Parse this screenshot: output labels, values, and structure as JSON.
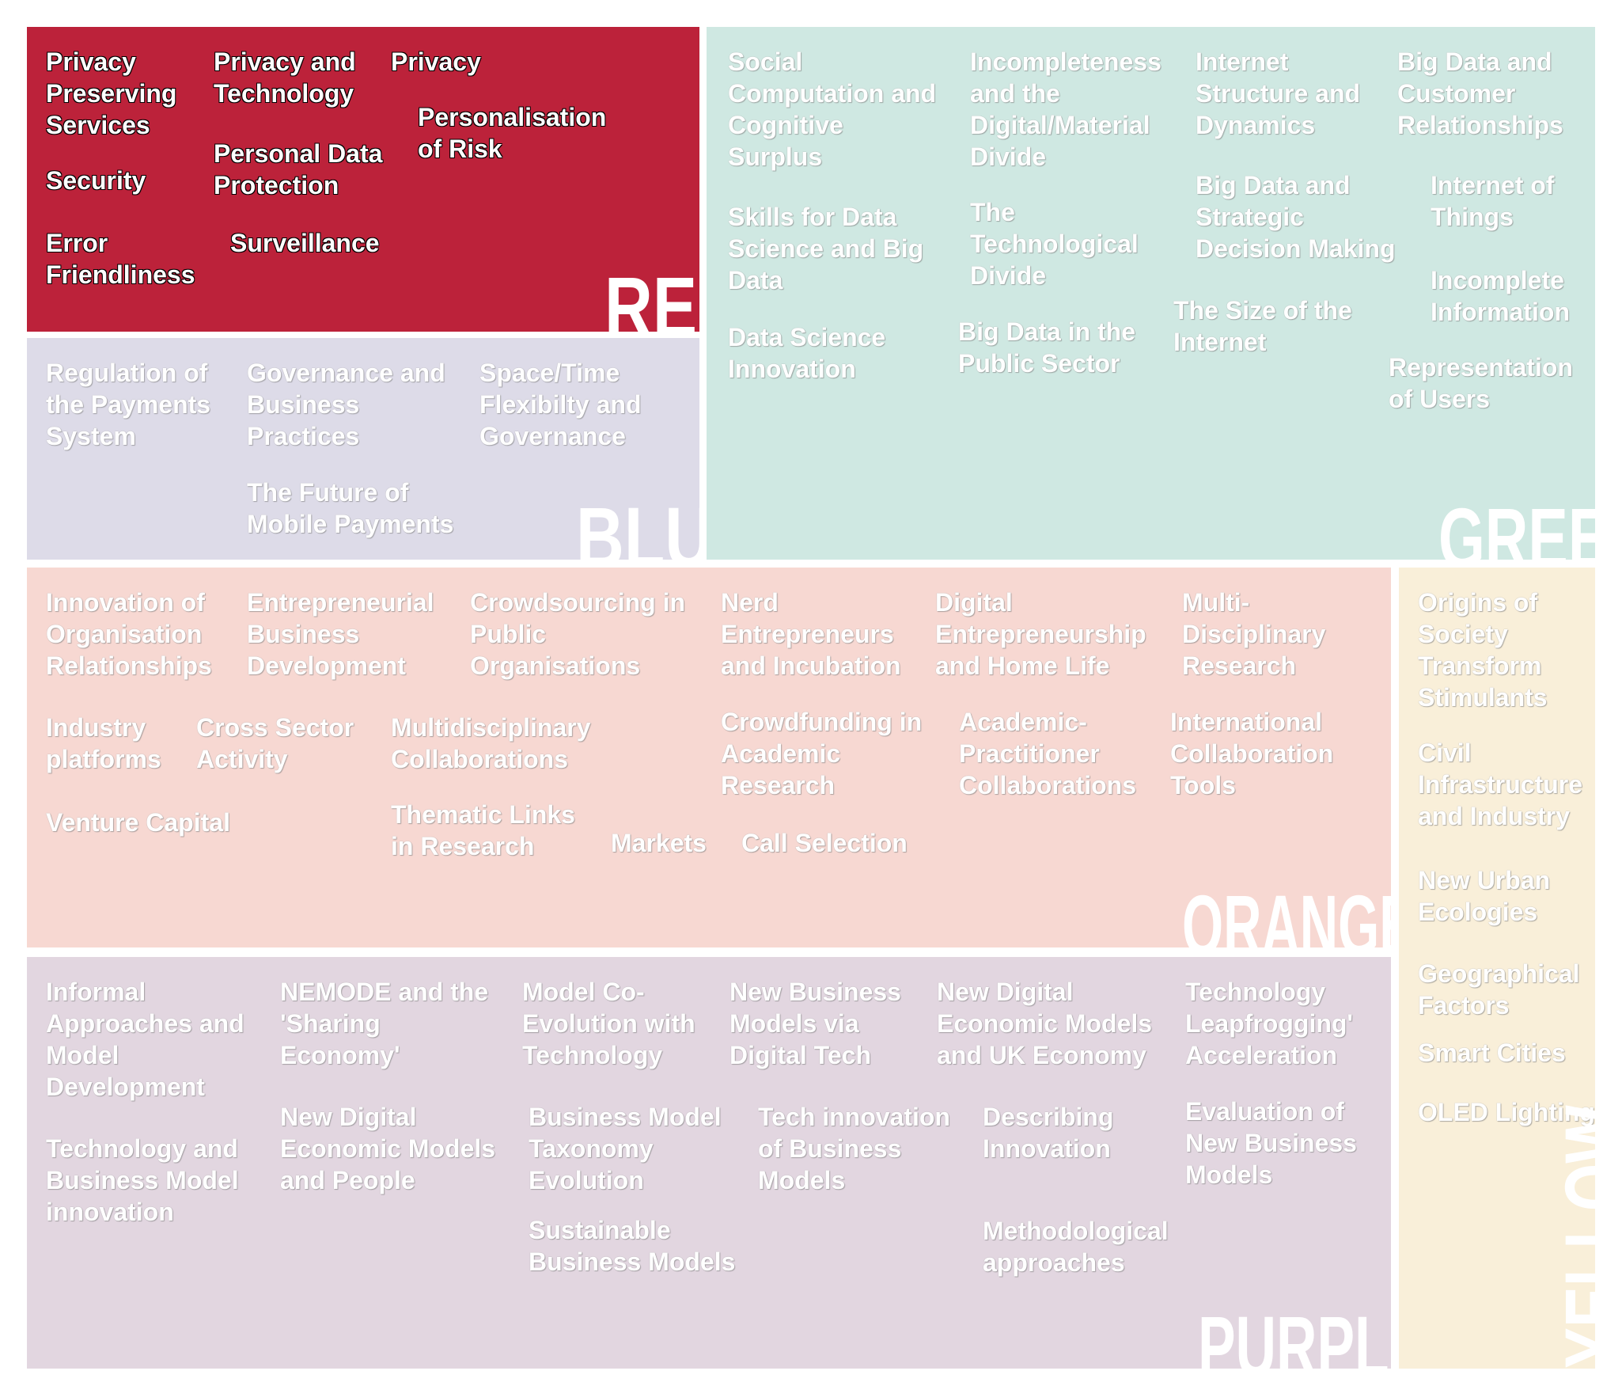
{
  "colors": {
    "red": "#BC223A",
    "blue": "#DDDBE8",
    "green": "#CFE8E2",
    "orange": "#F7D8D2",
    "purple": "#E2D6E0",
    "yellow": "#F9EFD9"
  },
  "red": {
    "label": "RED",
    "items": [
      "Privacy\nPreserving\nServices",
      "Privacy and\nTechnology",
      "Privacy",
      "Personalisation\nof Risk",
      "Personal Data\nProtection",
      "Security",
      "Error\nFriendliness",
      "Surveillance"
    ]
  },
  "blue": {
    "label": "BLUE",
    "items": [
      "Regulation of\nthe Payments\nSystem",
      "Governance and\nBusiness\nPractices",
      "Space/Time\nFlexibilty and\nGovernance",
      "The Future of\nMobile Payments"
    ]
  },
  "green": {
    "label": "GREEN",
    "items": [
      "Social\nComputation and\nCognitive\nSurplus",
      "Skills for Data\nScience and Big\nData",
      "Data Science\nInnovation",
      "Incompleteness\nand the\nDigital/Material\nDivide",
      "The\nTechnological\nDivide",
      "Big Data in the\nPublic Sector",
      "Internet\nStructure and\nDynamics",
      "Big Data and\nStrategic\nDecision Making",
      "The Size of the\nInternet",
      "Big Data and\nCustomer\nRelationships",
      "Internet of\nThings",
      "Incomplete\nInformation",
      "Representation\nof Users"
    ]
  },
  "orange": {
    "label": "ORANGE",
    "items": [
      "Innovation of\nOrganisation\nRelationships",
      "Entrepreneurial\nBusiness\nDevelopment",
      "Crowdsourcing in\nPublic\nOrganisations",
      "Nerd\nEntrepreneurs\nand Incubation",
      "Digital\nEntrepreneurship\nand Home Life",
      "Multi-\nDisciplinary\nResearch",
      "Industry\nplatforms",
      "Cross Sector\nActivity",
      "Multidisciplinary\nCollaborations",
      "Crowdfunding in\nAcademic\nResearch",
      "Academic-\nPractitioner\nCollaborations",
      "International\nCollaboration\nTools",
      "Venture Capital",
      "Thematic Links\nin Research",
      "Markets",
      "Call Selection"
    ]
  },
  "purple": {
    "label": "PURPLE",
    "items": [
      "Informal\nApproaches and\nModel\nDevelopment",
      "NEMODE and the\n'Sharing\nEconomy'",
      "Model Co-\nEvolution with\nTechnology",
      "New Business\nModels via\nDigital Tech",
      "New Digital\nEconomic Models\nand UK Economy",
      "Technology\nLeapfrogging'\nAcceleration",
      "Technology and\nBusiness Model\ninnovation",
      "New Digital\nEconomic Models\nand People",
      "Business Model\nTaxonomy\nEvolution",
      "Tech innovation\nof Business\nModels",
      "Describing\nInnovation",
      "Evaluation of\nNew Business\nModels",
      "Sustainable\nBusiness Models",
      "Methodological\napproaches"
    ]
  },
  "yellow": {
    "label": "YELLOW",
    "items": [
      "Origins of\nSociety\nTransform\nStimulants",
      "Civil\nInfrastructure\nand Industry",
      "New Urban\nEcologies",
      "Geographical\nFactors",
      "Smart Cities",
      "OLED Lighting"
    ]
  }
}
